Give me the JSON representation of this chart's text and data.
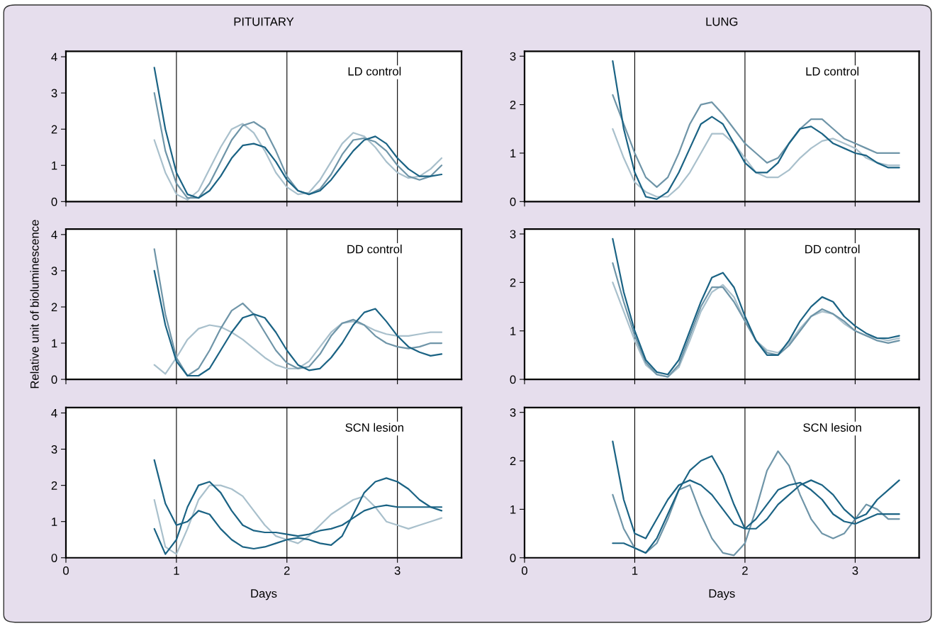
{
  "chart_data": [
    {
      "type": "line",
      "title": "PITUITARY",
      "annotations": [
        "LD control"
      ],
      "x": [
        0.8,
        0.9,
        1.0,
        1.1,
        1.2,
        1.3,
        1.4,
        1.5,
        1.6,
        1.7,
        1.8,
        1.9,
        2.0,
        2.1,
        2.2,
        2.3,
        2.4,
        2.5,
        2.6,
        2.7,
        2.8,
        2.9,
        3.0,
        3.1,
        3.2,
        3.3,
        3.4
      ],
      "xlim": [
        0,
        3.58
      ],
      "xticks": [
        0,
        1,
        2,
        3
      ],
      "ylim": [
        0,
        4.15
      ],
      "yticks": [
        0,
        1,
        2,
        3,
        4
      ],
      "tick_labels": "y",
      "ref_lines": [
        {
          "axis": "x",
          "value": 1,
          "color": "#000000"
        },
        {
          "axis": "x",
          "value": 2,
          "color": "#000000"
        },
        {
          "axis": "x",
          "value": 3,
          "color": "#000000"
        }
      ],
      "series": [
        {
          "color": "#a9c0cc",
          "values": [
            1.7,
            0.8,
            0.2,
            0.05,
            0.3,
            0.9,
            1.5,
            2.0,
            2.15,
            1.9,
            1.4,
            0.8,
            0.4,
            0.2,
            0.25,
            0.6,
            1.1,
            1.6,
            1.9,
            1.8,
            1.5,
            1.1,
            0.8,
            0.65,
            0.7,
            0.9,
            1.2
          ]
        },
        {
          "color": "#6f95a8",
          "values": [
            3.0,
            1.4,
            0.5,
            0.1,
            0.1,
            0.5,
            1.1,
            1.7,
            2.1,
            2.2,
            2.0,
            1.4,
            0.7,
            0.3,
            0.2,
            0.35,
            0.75,
            1.3,
            1.7,
            1.75,
            1.65,
            1.4,
            1.0,
            0.7,
            0.6,
            0.7,
            1.0
          ]
        },
        {
          "color": "#1b6384",
          "values": [
            3.7,
            2.0,
            0.8,
            0.2,
            0.1,
            0.3,
            0.7,
            1.2,
            1.55,
            1.6,
            1.5,
            1.1,
            0.6,
            0.3,
            0.2,
            0.3,
            0.6,
            1.0,
            1.4,
            1.7,
            1.8,
            1.6,
            1.2,
            0.9,
            0.7,
            0.7,
            0.75
          ]
        }
      ]
    },
    {
      "type": "line",
      "title": "LUNG",
      "annotations": [
        "LD control"
      ],
      "x": [
        0.8,
        0.9,
        1.0,
        1.1,
        1.2,
        1.3,
        1.4,
        1.5,
        1.6,
        1.7,
        1.8,
        1.9,
        2.0,
        2.1,
        2.2,
        2.3,
        2.4,
        2.5,
        2.6,
        2.7,
        2.8,
        2.9,
        3.0,
        3.1,
        3.2,
        3.3,
        3.4
      ],
      "xlim": [
        0,
        3.58
      ],
      "xticks": [
        0,
        1,
        2,
        3
      ],
      "ylim": [
        0,
        3.1
      ],
      "yticks": [
        0,
        1,
        2,
        3
      ],
      "tick_labels": "y",
      "ref_lines": [
        {
          "axis": "x",
          "value": 1,
          "color": "#000000"
        },
        {
          "axis": "x",
          "value": 2,
          "color": "#000000"
        },
        {
          "axis": "x",
          "value": 3,
          "color": "#000000"
        }
      ],
      "series": [
        {
          "color": "#a9c0cc",
          "values": [
            1.5,
            0.9,
            0.4,
            0.2,
            0.1,
            0.1,
            0.3,
            0.6,
            1.0,
            1.4,
            1.4,
            1.2,
            0.9,
            0.6,
            0.5,
            0.5,
            0.65,
            0.9,
            1.1,
            1.25,
            1.3,
            1.2,
            1.1,
            0.9,
            0.8,
            0.75,
            0.75
          ]
        },
        {
          "color": "#6f95a8",
          "values": [
            2.2,
            1.6,
            1.0,
            0.5,
            0.3,
            0.5,
            1.0,
            1.6,
            2.0,
            2.05,
            1.8,
            1.5,
            1.2,
            1.0,
            0.8,
            0.9,
            1.2,
            1.5,
            1.7,
            1.7,
            1.5,
            1.3,
            1.2,
            1.1,
            1.0,
            1.0,
            1.0
          ]
        },
        {
          "color": "#1b6384",
          "values": [
            2.9,
            1.5,
            0.6,
            0.1,
            0.05,
            0.2,
            0.6,
            1.1,
            1.6,
            1.75,
            1.6,
            1.2,
            0.8,
            0.6,
            0.6,
            0.8,
            1.2,
            1.5,
            1.55,
            1.4,
            1.2,
            1.1,
            1.0,
            0.95,
            0.8,
            0.7,
            0.7
          ]
        }
      ]
    },
    {
      "type": "line",
      "ylabel": "Relative unit of bioluminescence",
      "annotations": [
        "DD control"
      ],
      "x": [
        0.8,
        0.9,
        1.0,
        1.1,
        1.2,
        1.3,
        1.4,
        1.5,
        1.6,
        1.7,
        1.8,
        1.9,
        2.0,
        2.1,
        2.2,
        2.3,
        2.4,
        2.5,
        2.6,
        2.7,
        2.8,
        2.9,
        3.0,
        3.1,
        3.2,
        3.3,
        3.4
      ],
      "xlim": [
        0,
        3.58
      ],
      "xticks": [
        0,
        1,
        2,
        3
      ],
      "ylim": [
        0,
        4.15
      ],
      "yticks": [
        0,
        1,
        2,
        3,
        4
      ],
      "tick_labels": "y",
      "ref_lines": [
        {
          "axis": "x",
          "value": 1,
          "color": "#000000"
        },
        {
          "axis": "x",
          "value": 2,
          "color": "#000000"
        },
        {
          "axis": "x",
          "value": 3,
          "color": "#000000"
        }
      ],
      "series": [
        {
          "color": "#a9c0cc",
          "values": [
            0.4,
            0.15,
            0.6,
            1.1,
            1.4,
            1.5,
            1.45,
            1.3,
            1.1,
            0.85,
            0.6,
            0.4,
            0.3,
            0.3,
            0.5,
            0.9,
            1.3,
            1.55,
            1.6,
            1.5,
            1.35,
            1.25,
            1.2,
            1.2,
            1.25,
            1.3,
            1.3
          ]
        },
        {
          "color": "#6f95a8",
          "values": [
            3.6,
            1.8,
            0.6,
            0.1,
            0.3,
            0.8,
            1.4,
            1.9,
            2.1,
            1.8,
            1.3,
            0.8,
            0.45,
            0.3,
            0.35,
            0.7,
            1.2,
            1.55,
            1.65,
            1.5,
            1.2,
            1.0,
            0.9,
            0.85,
            0.9,
            1.0,
            1.0
          ]
        },
        {
          "color": "#1b6384",
          "values": [
            3.0,
            1.5,
            0.5,
            0.1,
            0.1,
            0.3,
            0.8,
            1.3,
            1.7,
            1.8,
            1.7,
            1.3,
            0.8,
            0.4,
            0.25,
            0.3,
            0.6,
            1.0,
            1.5,
            1.85,
            1.95,
            1.6,
            1.2,
            0.9,
            0.75,
            0.65,
            0.7
          ]
        }
      ]
    },
    {
      "type": "line",
      "annotations": [
        "DD control"
      ],
      "x": [
        0.8,
        0.9,
        1.0,
        1.1,
        1.2,
        1.3,
        1.4,
        1.5,
        1.6,
        1.7,
        1.8,
        1.9,
        2.0,
        2.1,
        2.2,
        2.3,
        2.4,
        2.5,
        2.6,
        2.7,
        2.8,
        2.9,
        3.0,
        3.1,
        3.2,
        3.3,
        3.4
      ],
      "xlim": [
        0,
        3.58
      ],
      "xticks": [
        0,
        1,
        2,
        3
      ],
      "ylim": [
        0,
        3.1
      ],
      "yticks": [
        0,
        1,
        2,
        3
      ],
      "tick_labels": "y",
      "ref_lines": [
        {
          "axis": "x",
          "value": 1,
          "color": "#000000"
        },
        {
          "axis": "x",
          "value": 2,
          "color": "#000000"
        },
        {
          "axis": "x",
          "value": 3,
          "color": "#000000"
        }
      ],
      "series": [
        {
          "color": "#a9c0cc",
          "values": [
            2.0,
            1.4,
            0.8,
            0.3,
            0.1,
            0.05,
            0.25,
            0.8,
            1.4,
            1.8,
            1.95,
            1.7,
            1.2,
            0.8,
            0.6,
            0.55,
            0.75,
            1.05,
            1.3,
            1.4,
            1.35,
            1.15,
            1.0,
            0.9,
            0.85,
            0.8,
            0.85
          ]
        },
        {
          "color": "#6f95a8",
          "values": [
            2.4,
            1.6,
            0.9,
            0.35,
            0.1,
            0.05,
            0.3,
            0.9,
            1.5,
            1.9,
            1.9,
            1.6,
            1.2,
            0.8,
            0.55,
            0.5,
            0.7,
            1.0,
            1.3,
            1.45,
            1.35,
            1.2,
            1.0,
            0.9,
            0.8,
            0.75,
            0.8
          ]
        },
        {
          "color": "#1b6384",
          "values": [
            2.9,
            1.8,
            1.0,
            0.4,
            0.15,
            0.1,
            0.4,
            1.0,
            1.6,
            2.1,
            2.2,
            1.9,
            1.3,
            0.8,
            0.5,
            0.5,
            0.8,
            1.2,
            1.5,
            1.7,
            1.6,
            1.3,
            1.1,
            0.95,
            0.85,
            0.85,
            0.9
          ]
        }
      ]
    },
    {
      "type": "line",
      "xlabel": "Days",
      "annotations": [
        "SCN lesion"
      ],
      "x": [
        0.8,
        0.9,
        1.0,
        1.1,
        1.2,
        1.3,
        1.4,
        1.5,
        1.6,
        1.7,
        1.8,
        1.9,
        2.0,
        2.1,
        2.2,
        2.3,
        2.4,
        2.5,
        2.6,
        2.7,
        2.8,
        2.9,
        3.0,
        3.1,
        3.2,
        3.3,
        3.4
      ],
      "xlim": [
        0,
        3.58
      ],
      "xticks": [
        0,
        1,
        2,
        3
      ],
      "ylim": [
        0,
        4.15
      ],
      "yticks": [
        0,
        1,
        2,
        3,
        4
      ],
      "ref_lines": [
        {
          "axis": "x",
          "value": 1,
          "color": "#000000"
        },
        {
          "axis": "x",
          "value": 2,
          "color": "#000000"
        },
        {
          "axis": "x",
          "value": 3,
          "color": "#000000"
        }
      ],
      "series": [
        {
          "color": "#a9c0cc",
          "values": [
            1.6,
            0.3,
            0.1,
            0.8,
            1.6,
            2.0,
            2.0,
            1.9,
            1.7,
            1.3,
            0.9,
            0.6,
            0.5,
            0.4,
            0.6,
            0.9,
            1.2,
            1.4,
            1.6,
            1.7,
            1.4,
            1.0,
            0.9,
            0.8,
            0.9,
            1.0,
            1.1
          ]
        },
        {
          "color": "#1b6384",
          "values": [
            0.8,
            0.1,
            0.5,
            1.4,
            2.0,
            2.1,
            1.8,
            1.3,
            0.9,
            0.75,
            0.7,
            0.7,
            0.65,
            0.6,
            0.65,
            0.75,
            0.8,
            0.9,
            1.1,
            1.3,
            1.4,
            1.45,
            1.4,
            1.4,
            1.4,
            1.4,
            1.3
          ]
        },
        {
          "color": "#1b6384",
          "values": [
            2.7,
            1.5,
            0.9,
            1.0,
            1.3,
            1.2,
            0.8,
            0.5,
            0.3,
            0.25,
            0.3,
            0.4,
            0.5,
            0.55,
            0.5,
            0.4,
            0.35,
            0.6,
            1.2,
            1.8,
            2.1,
            2.2,
            2.1,
            1.9,
            1.6,
            1.4,
            1.4
          ]
        }
      ]
    },
    {
      "type": "line",
      "xlabel": "Days",
      "annotations": [
        "SCN lesion"
      ],
      "x": [
        0.8,
        0.9,
        1.0,
        1.1,
        1.2,
        1.3,
        1.4,
        1.5,
        1.6,
        1.7,
        1.8,
        1.9,
        2.0,
        2.1,
        2.2,
        2.3,
        2.4,
        2.5,
        2.6,
        2.7,
        2.8,
        2.9,
        3.0,
        3.1,
        3.2,
        3.3,
        3.4
      ],
      "xlim": [
        0,
        3.58
      ],
      "xticks": [
        0,
        1,
        2,
        3
      ],
      "ylim": [
        0,
        3.1
      ],
      "yticks": [
        0,
        1,
        2,
        3
      ],
      "ref_lines": [
        {
          "axis": "x",
          "value": 1,
          "color": "#000000"
        },
        {
          "axis": "x",
          "value": 2,
          "color": "#000000"
        },
        {
          "axis": "x",
          "value": 3,
          "color": "#000000"
        }
      ],
      "series": [
        {
          "color": "#6f95a8",
          "values": [
            1.3,
            0.6,
            0.2,
            0.1,
            0.3,
            0.8,
            1.4,
            1.5,
            0.9,
            0.4,
            0.1,
            0.05,
            0.3,
            1.0,
            1.8,
            2.2,
            1.9,
            1.3,
            0.8,
            0.5,
            0.4,
            0.5,
            0.8,
            1.1,
            1.0,
            0.8,
            0.8
          ]
        },
        {
          "color": "#1b6384",
          "values": [
            0.3,
            0.3,
            0.2,
            0.1,
            0.4,
            0.9,
            1.4,
            1.8,
            2.0,
            2.1,
            1.7,
            1.1,
            0.6,
            0.6,
            0.8,
            1.1,
            1.3,
            1.5,
            1.6,
            1.5,
            1.3,
            1.0,
            0.8,
            0.9,
            1.2,
            1.4,
            1.6
          ]
        },
        {
          "color": "#1b6384",
          "values": [
            2.4,
            1.2,
            0.5,
            0.4,
            0.8,
            1.2,
            1.5,
            1.6,
            1.5,
            1.3,
            1.0,
            0.7,
            0.6,
            0.8,
            1.1,
            1.4,
            1.5,
            1.55,
            1.4,
            1.2,
            0.9,
            0.75,
            0.7,
            0.8,
            0.9,
            0.9,
            0.9
          ]
        }
      ]
    }
  ]
}
